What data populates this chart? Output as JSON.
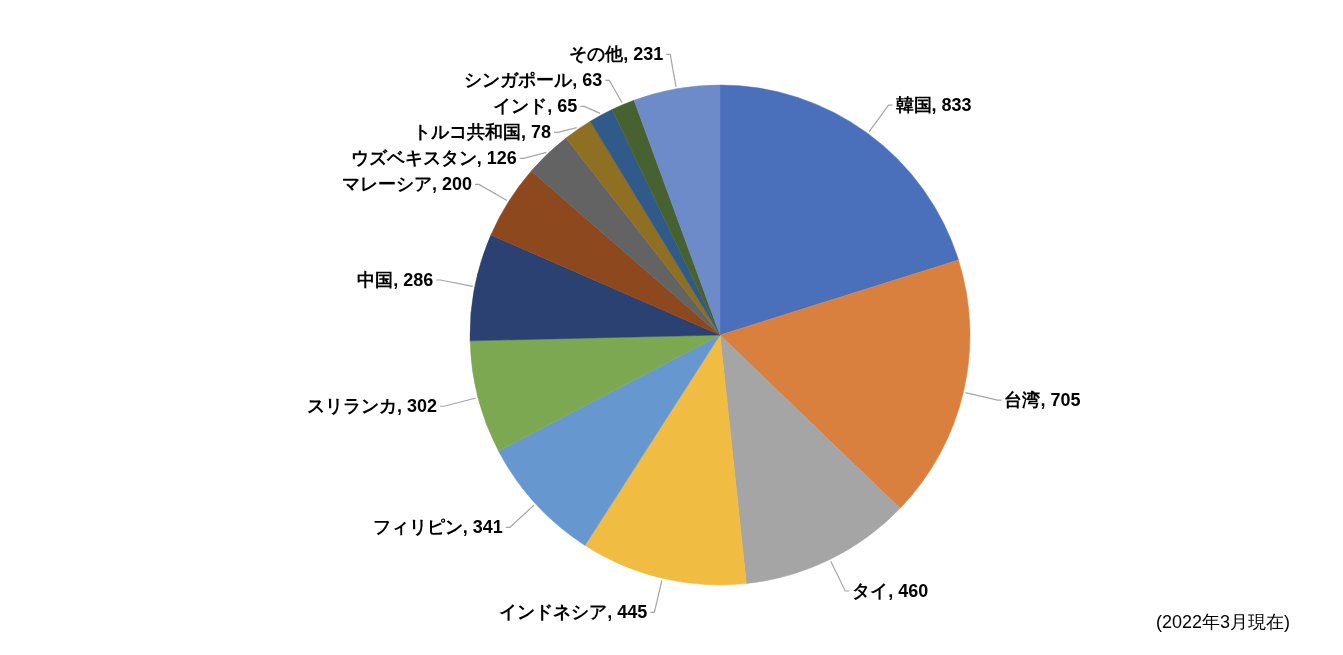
{
  "chart_data": {
    "type": "pie",
    "categories": [
      "韓国",
      "台湾",
      "タイ",
      "インドネシア",
      "フィリピン",
      "スリランカ",
      "中国",
      "マレーシア",
      "ウズベキスタン",
      "トルコ共和国",
      "インド",
      "シンガポール",
      "その他"
    ],
    "values": [
      833,
      705,
      460,
      445,
      341,
      302,
      286,
      200,
      126,
      78,
      65,
      63,
      231
    ],
    "value_labels": [
      ", 833",
      ", 705",
      ", 460",
      ", 445",
      ", 341",
      ", 302",
      ", 286",
      ", 200",
      ", 126",
      ", 78",
      ", 65",
      ", 63",
      ", 231"
    ],
    "colors": [
      "#4a6fbb",
      "#d9803f",
      "#a5a5a5",
      "#f0bd42",
      "#6698cf",
      "#7ca851",
      "#2b4171",
      "#8d481e",
      "#636363",
      "#8f6f22",
      "#2f5a8a",
      "#476130",
      "#6e8bc9"
    ],
    "annotations": [
      "(2022年3月現在)"
    ]
  }
}
